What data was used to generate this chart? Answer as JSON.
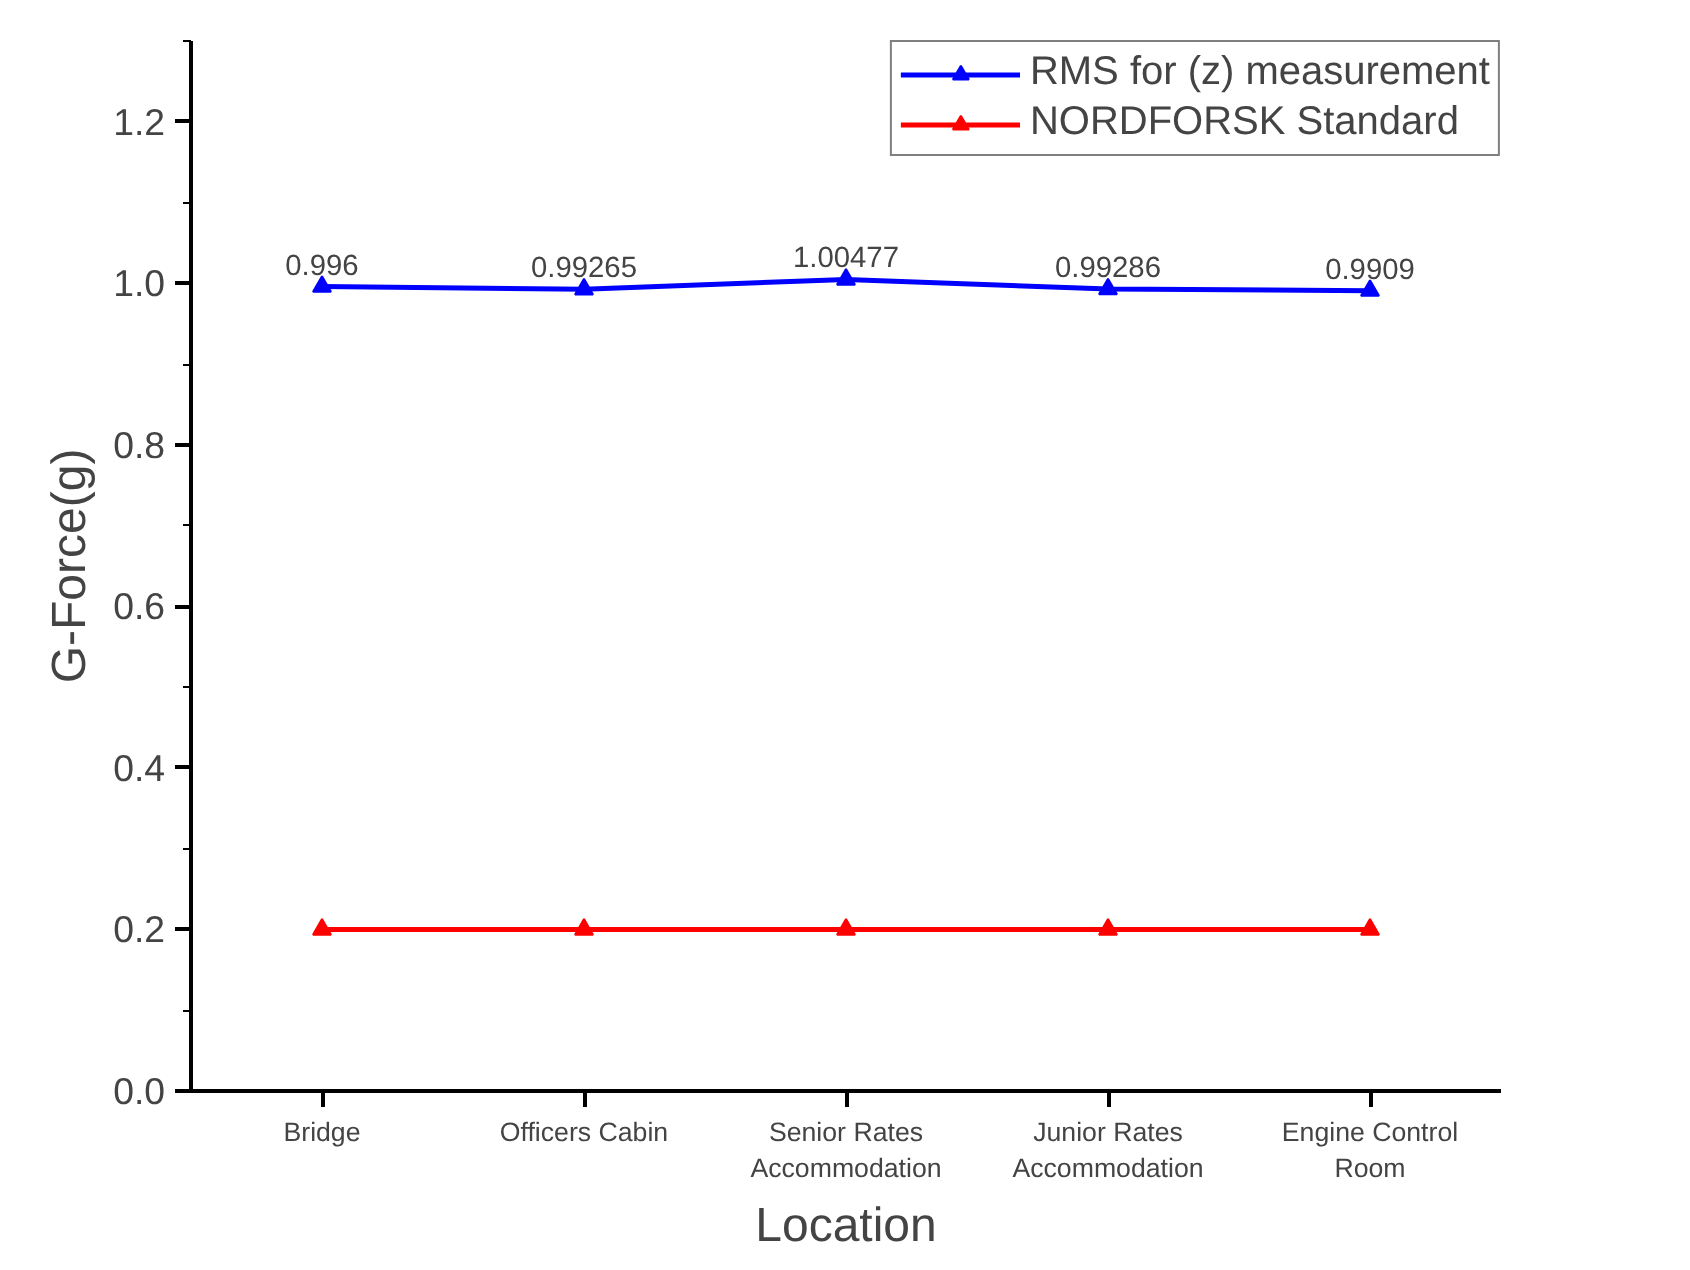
{
  "chart_data": {
    "type": "line",
    "xlabel": "Location",
    "ylabel": "G-Force(g)",
    "categories": [
      "Bridge",
      "Officers Cabin",
      "Senior Rates\nAccommodation",
      "Junior Rates\nAccommodation",
      "Engine Control\nRoom"
    ],
    "series": [
      {
        "name": "RMS for (z) measurement",
        "color": "#0000ff",
        "values": [
          0.996,
          0.99265,
          1.00477,
          0.99286,
          0.9909
        ],
        "value_labels": [
          "0.996",
          "0.99265",
          "1.00477",
          "0.99286",
          "0.9909"
        ]
      },
      {
        "name": "NORDFORSK Standard",
        "color": "#ff0000",
        "values": [
          0.2,
          0.2,
          0.2,
          0.2,
          0.2
        ]
      }
    ],
    "ylim": [
      0,
      1.3
    ],
    "yticks": [
      {
        "value": 0,
        "label": "0.0"
      },
      0.2,
      0.4,
      0.6,
      0.8,
      {
        "value": 1,
        "label": "1.0"
      },
      1.2
    ],
    "grid": false,
    "legend": "top right",
    "marker": "triangle",
    "line_style": "solid"
  }
}
